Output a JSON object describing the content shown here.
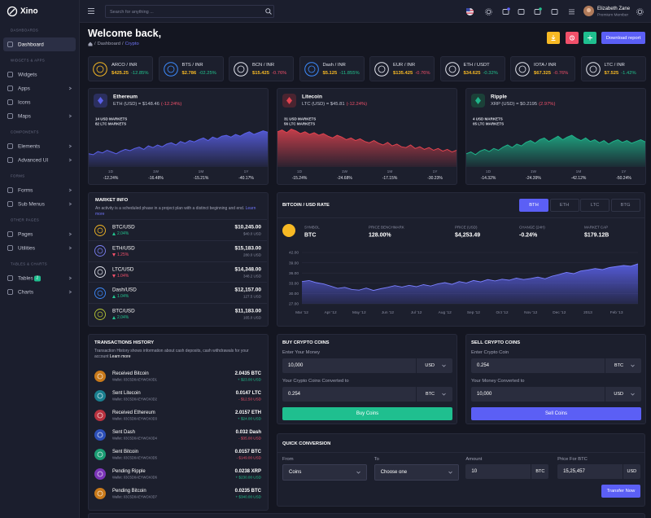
{
  "sidebar": {
    "logo": "Xino",
    "sections": [
      {
        "title": "DASHBOARDS",
        "items": [
          {
            "label": "Dashboard",
            "active": true
          }
        ]
      },
      {
        "title": "WIDGETS & APPS",
        "items": [
          {
            "label": "Widgets"
          },
          {
            "label": "Apps",
            "submenu": true
          },
          {
            "label": "Icons"
          },
          {
            "label": "Maps",
            "submenu": true
          }
        ]
      },
      {
        "title": "COMPONENTS",
        "items": [
          {
            "label": "Elements",
            "submenu": true
          },
          {
            "label": "Advanced UI",
            "submenu": true
          }
        ]
      },
      {
        "title": "FORMS",
        "items": [
          {
            "label": "Forms",
            "submenu": true
          },
          {
            "label": "Sub Menus",
            "submenu": true
          }
        ]
      },
      {
        "title": "OTHER PAGES",
        "items": [
          {
            "label": "Pages",
            "submenu": true
          },
          {
            "label": "Utilities",
            "submenu": true
          }
        ]
      },
      {
        "title": "TABLES & CHARTS",
        "items": [
          {
            "label": "Tables",
            "badge": "2",
            "submenu": true
          },
          {
            "label": "Charts",
            "submenu": true
          }
        ]
      }
    ]
  },
  "header": {
    "search_placeholder": "Search for anything ...",
    "user_name": "Elizabeth Zane",
    "user_role": "Premium Member"
  },
  "page": {
    "title": "Welcome back,",
    "breadcrumb": [
      "Dashboard",
      "Crypto"
    ],
    "separator": "/",
    "download_button": "Download report"
  },
  "tickers": [
    {
      "pair": "ARCO / INR",
      "price": "$425.25",
      "change": "-12.85%",
      "trend": "up",
      "icon_color": "#f7b924"
    },
    {
      "pair": "BTS / INR",
      "price": "$2.786",
      "change": "-02.25%",
      "trend": "up",
      "icon_color": "#3d8bfd"
    },
    {
      "pair": "BCN / INR",
      "price": "$15.425",
      "change": "-0.76%",
      "trend": "down",
      "icon_color": "#e4e6ef"
    },
    {
      "pair": "Dash / INR",
      "price": "$5.125",
      "change": "-11.855%",
      "trend": "up",
      "icon_color": "#3d8bfd"
    },
    {
      "pair": "EUR / INR",
      "price": "$135.425",
      "change": "-0.76%",
      "trend": "down",
      "icon_color": "#e4e6ef"
    },
    {
      "pair": "ETH / USDT",
      "price": "$34.625",
      "change": "-0.32%",
      "trend": "up",
      "icon_color": "#e4e6ef"
    },
    {
      "pair": "IOTA / INR",
      "price": "$67.325",
      "change": "-0.76%",
      "trend": "down",
      "icon_color": "#e4e6ef"
    },
    {
      "pair": "LTC / INR",
      "price": "$7.525",
      "change": "-1.42%",
      "trend": "up",
      "icon_color": "#e4e6ef"
    }
  ],
  "coins": [
    {
      "name": "Ethereum",
      "rate": "ETH (USD) = $148.46",
      "change": "(-12.24%)",
      "usd_markets": "14 USD MARKETS",
      "ltc_markets": "82 LTC MARKETS",
      "color": "#5b61ea",
      "icon_bg": "#2b2f5e",
      "chart": {
        "type": "area",
        "ylim": [
          0,
          100
        ],
        "values": [
          30,
          28,
          35,
          32,
          38,
          34,
          30,
          36,
          40,
          37,
          42,
          45,
          40,
          48,
          44,
          50,
          46,
          52,
          55,
          50,
          58,
          54,
          60,
          57,
          62,
          66,
          60,
          68,
          64,
          70,
          72,
          68,
          74,
          70,
          76,
          80,
          74,
          78,
          82,
          79
        ]
      },
      "periods": [
        {
          "label": "1D",
          "value": "-12.24%"
        },
        {
          "label": "1W",
          "value": "-16.48%"
        },
        {
          "label": "1M",
          "value": "-15.21%"
        },
        {
          "label": "1Y",
          "value": "-40.17%"
        }
      ]
    },
    {
      "name": "Litecoin",
      "rate": "LTC (USD) = $45.81",
      "change": "(-12.24%)",
      "usd_markets": "31 USD MARKETS",
      "ltc_markets": "56 LTC MARKETS",
      "color": "#e0434f",
      "icon_bg": "#4a2430",
      "chart": {
        "type": "area",
        "ylim": [
          0,
          100
        ],
        "values": [
          80,
          84,
          78,
          86,
          82,
          76,
          80,
          74,
          78,
          72,
          76,
          70,
          66,
          72,
          68,
          62,
          66,
          60,
          64,
          58,
          55,
          60,
          54,
          50,
          56,
          48,
          52,
          46,
          44,
          50,
          42,
          46,
          40,
          44,
          38,
          42,
          36,
          40,
          34,
          38
        ]
      },
      "periods": [
        {
          "label": "1D",
          "value": "-15.24%"
        },
        {
          "label": "1W",
          "value": "-24.68%"
        },
        {
          "label": "1M",
          "value": "-17.15%"
        },
        {
          "label": "1Y",
          "value": "-30.23%"
        }
      ]
    },
    {
      "name": "Ripple",
      "rate": "XRP (USD) = $0.2195",
      "change": "(2.97%)",
      "usd_markets": "4 USD MARKETS",
      "ltc_markets": "05 LTC MARKETS",
      "color": "#1fb389",
      "icon_bg": "#1b4038",
      "chart": {
        "type": "area",
        "ylim": [
          0,
          100
        ],
        "values": [
          30,
          34,
          28,
          36,
          40,
          35,
          42,
          38,
          45,
          50,
          44,
          52,
          48,
          56,
          60,
          54,
          62,
          66,
          58,
          64,
          70,
          62,
          68,
          72,
          65,
          60,
          66,
          58,
          62,
          55,
          60,
          52,
          58,
          62,
          56,
          60,
          54,
          58,
          62,
          57
        ]
      },
      "periods": [
        {
          "label": "1D",
          "value": "-14.32%"
        },
        {
          "label": "1W",
          "value": "-24.39%"
        },
        {
          "label": "1M",
          "value": "-42.12%"
        },
        {
          "label": "1Y",
          "value": "-50.24%"
        }
      ]
    }
  ],
  "market_info": {
    "title": "MARKET INFO",
    "description": "An activity is a scheduled phase in a project plan with a distinct beginning and end.",
    "link": "Learn more",
    "rows": [
      {
        "pair": "BTC/USD",
        "change": "2.04%",
        "trend": "up",
        "price": "$10,245.00",
        "usd": "$40.0 USD",
        "icon_color": "#f7b924"
      },
      {
        "pair": "ETH/USD",
        "change": "1.25%",
        "trend": "down",
        "price": "$15,183.00",
        "usd": "280.0 USD",
        "icon_color": "#7b7ff5"
      },
      {
        "pair": "LTC/USD",
        "change": "1.04%",
        "trend": "down",
        "price": "$14,348.00",
        "usd": "348.2 USD",
        "icon_color": "#e4e6ef"
      },
      {
        "pair": "Dash/USD",
        "change": "1.04%",
        "trend": "up",
        "price": "$12,157.00",
        "usd": "127.5 USD",
        "icon_color": "#3d8bfd"
      },
      {
        "pair": "BTC/USD",
        "change": "2.04%",
        "trend": "up",
        "price": "$11,183.00",
        "usd": "165.0 USD",
        "icon_color": "#b9c934"
      }
    ]
  },
  "btc_rate": {
    "title": "BITCOIN / USD RATE",
    "tabs": [
      {
        "label": "BTH",
        "active": true
      },
      {
        "label": "ETH"
      },
      {
        "label": "LTC"
      },
      {
        "label": "BTG"
      }
    ],
    "stats": [
      {
        "label": "SYMBOL",
        "value": "BTC"
      },
      {
        "label": "PRICE BENCHMARK",
        "value": "128.00%"
      },
      {
        "label": "PRICE (USD)",
        "value": "$4,253.49"
      },
      {
        "label": "CHANGE (24H)",
        "value": "-0.24%"
      },
      {
        "label": "MARKET CAP",
        "value": "$179.12B"
      }
    ],
    "chart_data": {
      "type": "area",
      "color": "#5b61ea",
      "grid": true,
      "categories": [
        "Mar '12",
        null,
        null,
        null,
        "Apr '12",
        null,
        null,
        null,
        "May '12",
        null,
        null,
        null,
        "Jun '12",
        null,
        null,
        null,
        "Jul '12",
        null,
        null,
        null,
        "Aug '12",
        null,
        null,
        null,
        "Sep '12",
        null,
        null,
        null,
        "Oct '12",
        null,
        null,
        null,
        "Nov '12",
        null,
        null,
        null,
        "Dec '12",
        null,
        null,
        null,
        "2013",
        null,
        null,
        null,
        "Feb '13",
        null,
        null,
        null
      ],
      "values": [
        33.5,
        33.8,
        33.2,
        32.8,
        32.2,
        31.5,
        31.8,
        31.2,
        31.0,
        31.6,
        30.9,
        31.4,
        31.8,
        32.3,
        31.9,
        32.4,
        32.0,
        32.6,
        32.2,
        32.8,
        33.2,
        32.7,
        33.5,
        33.1,
        33.8,
        33.4,
        34.1,
        33.7,
        34.2,
        33.9,
        34.5,
        34.1,
        34.4,
        34.8,
        34.3,
        35.1,
        35.6,
        36.2,
        35.8,
        36.6,
        36.9,
        37.3,
        37.0,
        37.6,
        37.9,
        38.2,
        38.0,
        38.7
      ],
      "ylim": [
        27,
        42
      ],
      "yticks": [
        {
          "value": 27,
          "label": "27.00"
        },
        {
          "value": 30,
          "label": "30.00"
        },
        {
          "value": 33,
          "label": "33.00"
        },
        {
          "value": 36,
          "label": "36.00"
        },
        {
          "value": 39,
          "label": "39.00"
        },
        {
          "value": 42,
          "label": "42.00"
        }
      ]
    }
  },
  "transactions": {
    "title": "TRANSACTIONS HISTORY",
    "description": "Transaction History shows information about cash deposits, cash withdrawals for your account",
    "link": "Learn more",
    "rows": [
      {
        "title": "Received Bitcoin",
        "wallet": "Wallet: 03C5D0AEYWCK0D1",
        "amount": "2.0435 BTC",
        "usd": "+ $23.00 USD",
        "trend": "up",
        "icon_color": "#c8791a"
      },
      {
        "title": "Sent Litecoin",
        "wallet": "Wallet: 03C5D0AEYWCK0D2",
        "amount": "0.0147 LTC",
        "usd": "- $12.50 USD",
        "trend": "down",
        "icon_color": "#1a7f8f"
      },
      {
        "title": "Received Ethereum",
        "wallet": "Wallet: 03C5D0AEYWCK0D3",
        "amount": "2.0157 ETH",
        "usd": "+ $24.00 USD",
        "trend": "up",
        "icon_color": "#b8323f"
      },
      {
        "title": "Sent Dash",
        "wallet": "Wallet: 03C5D0AEYWCK0D4",
        "amount": "0.032 Dash",
        "usd": "- $35.00 USD",
        "trend": "down",
        "icon_color": "#2c4fb8"
      },
      {
        "title": "Sent Bitcoin",
        "wallet": "Wallet: 03C5D0AEYWCK0D5",
        "amount": "0.0157 BTC",
        "usd": "- $149.00 USD",
        "trend": "down",
        "icon_color": "#1b9c73"
      },
      {
        "title": "Pending Ripple",
        "wallet": "Wallet: 03C5D0AEYWCK0D6",
        "amount": "0.0238 XRP",
        "usd": "+ $230.00 USD",
        "trend": "up",
        "icon_color": "#7b35b8"
      },
      {
        "title": "Pending Bitcoin",
        "wallet": "Wallet: 03C5D0AEYWCK0D7",
        "amount": "0.0235 BTC",
        "usd": "+ $340.00 USD",
        "trend": "up",
        "icon_color": "#c8791a"
      }
    ]
  },
  "buy": {
    "title": "BUY CRYPTO COINS",
    "fields": [
      {
        "label": "Enter Your Money",
        "value": "10,000",
        "unit": "USD"
      },
      {
        "label": "Your Crypto Coins Converted to",
        "value": "0.254",
        "unit": "BTC"
      }
    ],
    "button": "Buy Coins",
    "color": "#1fbf8f"
  },
  "sell": {
    "title": "SELL CRYPTO COINS",
    "fields": [
      {
        "label": "Enter Crypto Coin",
        "value": "0.254",
        "unit": "BTC"
      },
      {
        "label": "Your Money Converted to",
        "value": "10,000",
        "unit": "USD"
      }
    ],
    "button": "Sell Coins",
    "color": "#5b5ff5"
  },
  "quick": {
    "title": "QUICK CONVERSION",
    "fields": [
      {
        "label": "From",
        "value": "Coins",
        "select": true
      },
      {
        "label": "To",
        "value": "Choose one",
        "select": true
      },
      {
        "label": "Amount",
        "value": "10",
        "unit": "BTC"
      },
      {
        "label": "Price For BTC",
        "value": "15,25,457",
        "unit": "USD"
      }
    ],
    "button": "Transfer Now"
  }
}
